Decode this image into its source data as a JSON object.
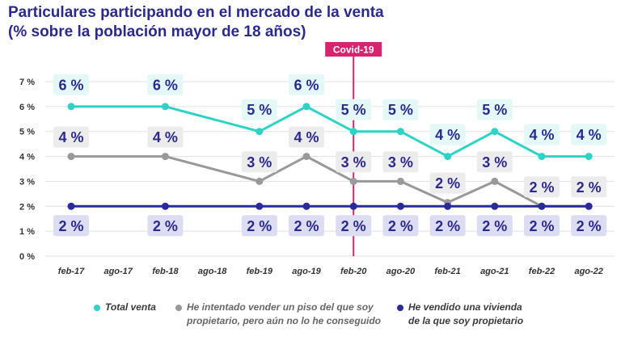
{
  "title": {
    "line1": "Particulares participando en el mercado de la venta",
    "line2": "(% sobre la población mayor de 18 años)"
  },
  "annotation": {
    "label": "Covid-19",
    "at_category": "feb-20"
  },
  "chart_data": {
    "type": "line",
    "title": "Particulares participando en el mercado de la venta (% sobre la población mayor de 18 años)",
    "categories": [
      "feb-17",
      "ago-17",
      "feb-18",
      "ago-18",
      "feb-19",
      "ago-19",
      "feb-20",
      "ago-20",
      "feb-21",
      "ago-21",
      "feb-22",
      "ago-22"
    ],
    "ylim": [
      0,
      7
    ],
    "yticks": [
      "0 %",
      "1 %",
      "2 %",
      "3 %",
      "4 %",
      "5 %",
      "6 %",
      "7 %"
    ],
    "grid": true,
    "legend_position": "bottom",
    "series": [
      {
        "name": "Total venta",
        "color": "#2ed3c6",
        "label_bg": "#e3f8f7",
        "values": [
          6,
          null,
          6,
          null,
          5,
          6,
          5,
          5,
          4,
          5,
          4,
          4
        ],
        "labels": [
          "6 %",
          null,
          "6 %",
          null,
          "5 %",
          "6 %",
          "5 %",
          "5 %",
          "4 %",
          "5 %",
          "4 %",
          "4 %"
        ]
      },
      {
        "name": "He intentado vender un piso del que soy propietario, pero aún no lo he conseguido",
        "color": "#999999",
        "label_bg": "#ececec",
        "values": [
          4,
          null,
          4,
          null,
          3,
          4,
          3,
          3,
          2.15,
          3,
          2,
          2
        ],
        "labels": [
          "4 %",
          null,
          "4 %",
          null,
          "3 %",
          "4 %",
          "3 %",
          "3 %",
          "2 %",
          "3 %",
          "2 %",
          "2 %"
        ]
      },
      {
        "name": "He vendido una vivienda de la que soy propietario",
        "color": "#2b2a9c",
        "label_bg": "#dcdcf3",
        "values": [
          2,
          null,
          2,
          null,
          2,
          2,
          2,
          2,
          2,
          2,
          2,
          2
        ],
        "labels": [
          "2 %",
          null,
          "2 %",
          null,
          "2 %",
          "2 %",
          "2 %",
          "2 %",
          "2 %",
          "2 %",
          "2 %",
          "2 %"
        ]
      }
    ]
  },
  "legend": {
    "total": {
      "label": "Total venta",
      "color": "#2ed3c6"
    },
    "tried": {
      "line1": "He intentado vender un piso del que soy",
      "line2": "propietario, pero aún no lo he conseguido",
      "color": "#999999"
    },
    "sold": {
      "line1": "He vendido una vivienda",
      "line2": "de la que soy propietario",
      "color": "#2b2a9c"
    }
  }
}
